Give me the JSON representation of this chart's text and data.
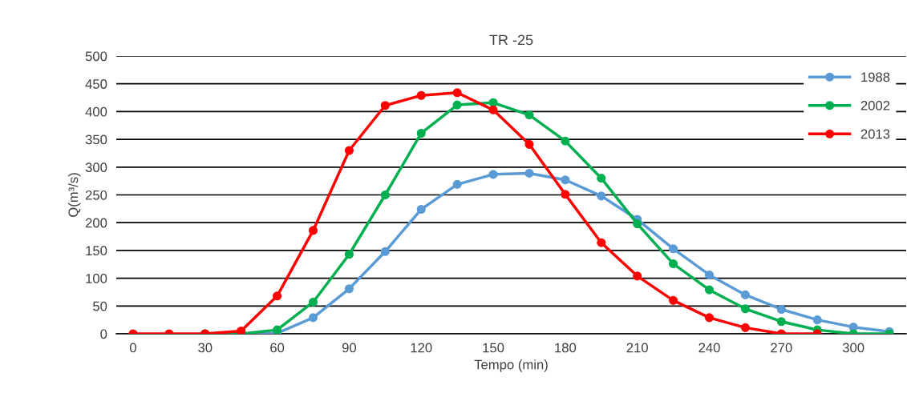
{
  "chart_data": {
    "type": "line",
    "title": "TR -25",
    "xlabel": "Tempo (min)",
    "ylabel": "Q(m³/s)",
    "x": [
      0,
      15,
      30,
      45,
      60,
      75,
      90,
      105,
      120,
      135,
      150,
      165,
      180,
      195,
      210,
      225,
      240,
      255,
      270,
      285,
      300,
      315
    ],
    "series": [
      {
        "name": "1988",
        "color": "#5b9bd5",
        "values": [
          null,
          null,
          0,
          0,
          1,
          29,
          81,
          148,
          224,
          269,
          287,
          289,
          277,
          248,
          206,
          153,
          106,
          70,
          44,
          25,
          12,
          4
        ]
      },
      {
        "name": "2002",
        "color": "#00b050",
        "values": [
          null,
          null,
          0,
          0,
          7,
          57,
          143,
          250,
          361,
          412,
          416,
          394,
          347,
          280,
          198,
          126,
          79,
          45,
          22,
          7,
          0,
          0
        ]
      },
      {
        "name": "2013",
        "color": "#ff0000",
        "values": [
          0,
          0,
          0,
          5,
          68,
          186,
          330,
          411,
          429,
          434,
          403,
          341,
          251,
          164,
          104,
          60,
          29,
          11,
          0,
          0,
          null,
          null
        ]
      }
    ],
    "xlim": [
      -7,
      322
    ],
    "xticks": [
      0,
      30,
      60,
      90,
      120,
      150,
      180,
      210,
      240,
      270,
      300
    ],
    "ylim": [
      0,
      500
    ],
    "yticks": [
      0,
      50,
      100,
      150,
      200,
      250,
      300,
      350,
      400,
      450,
      500
    ],
    "grid": "y",
    "legend": "top right",
    "marker": "circle",
    "line_style": "solid"
  }
}
